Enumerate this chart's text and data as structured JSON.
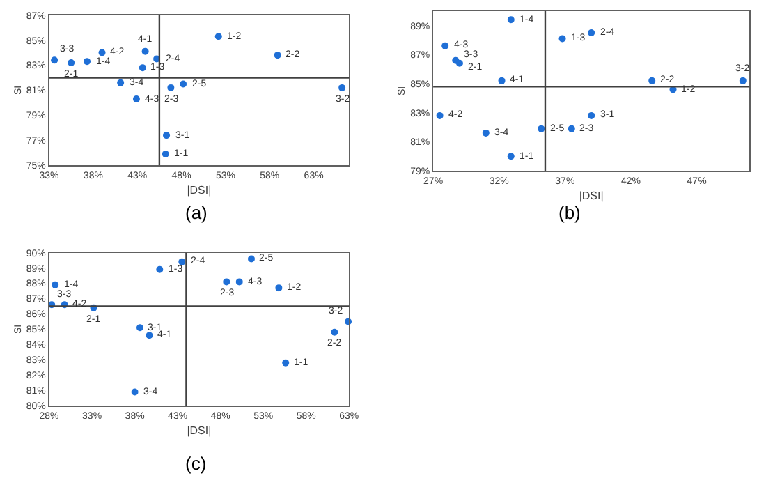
{
  "chart_data": [
    {
      "type": "scatter",
      "xlabel": "|DSI|",
      "ylabel": "SI",
      "marker": "circle",
      "grid": false,
      "xlim": [
        33,
        67
      ],
      "xticks": [
        {
          "value": 33,
          "label": "33%"
        },
        {
          "value": 38,
          "label": "38%"
        },
        {
          "value": 43,
          "label": "43%"
        },
        {
          "value": 48,
          "label": "48%"
        },
        {
          "value": 53,
          "label": "53%"
        },
        {
          "value": 58,
          "label": "58%"
        },
        {
          "value": 63,
          "label": "63%"
        }
      ],
      "ylim": [
        75,
        87
      ],
      "yticks": [
        {
          "value": 75,
          "label": "75%"
        },
        {
          "value": 77,
          "label": "77%"
        },
        {
          "value": 79,
          "label": "79%"
        },
        {
          "value": 81,
          "label": "81%"
        },
        {
          "value": 83,
          "label": "83%"
        },
        {
          "value": 85,
          "label": "85%"
        },
        {
          "value": 87,
          "label": "87%"
        }
      ],
      "ref_lines": [
        {
          "axis": "x",
          "value": 45.5,
          "color": "#404040"
        },
        {
          "axis": "y",
          "value": 82,
          "color": "#404040"
        }
      ],
      "series": [
        {
          "color": "#1f6fd6",
          "x": [
            33.6,
            35.5,
            37.3,
            39.0,
            43.9,
            45.2,
            43.6,
            41.1,
            42.9,
            46.8,
            48.2,
            52.2,
            58.9,
            66.2,
            46.3,
            46.2
          ],
          "values": [
            83.4,
            83.2,
            83.3,
            84.0,
            84.1,
            83.5,
            82.8,
            81.6,
            80.3,
            81.2,
            81.5,
            85.3,
            83.8,
            81.2,
            77.4,
            75.9
          ]
        }
      ],
      "annotations": [
        {
          "text": "3-3",
          "x": 33.6,
          "y": 83.4
        },
        {
          "text": "2-1",
          "x": 35.5,
          "y": 83.2
        },
        {
          "text": "1-4",
          "x": 37.3,
          "y": 83.3
        },
        {
          "text": "4-2",
          "x": 39.0,
          "y": 84.0
        },
        {
          "text": "4-1",
          "x": 43.9,
          "y": 84.1
        },
        {
          "text": "2-4",
          "x": 45.2,
          "y": 83.5
        },
        {
          "text": "1-3",
          "x": 43.6,
          "y": 82.8
        },
        {
          "text": "3-4",
          "x": 41.1,
          "y": 81.6
        },
        {
          "text": "4-3",
          "x": 42.9,
          "y": 80.3
        },
        {
          "text": "2-3",
          "x": 46.8,
          "y": 81.2
        },
        {
          "text": "2-5",
          "x": 48.2,
          "y": 81.5
        },
        {
          "text": "1-2",
          "x": 52.2,
          "y": 85.3
        },
        {
          "text": "2-2",
          "x": 58.9,
          "y": 83.8
        },
        {
          "text": "3-2",
          "x": 66.2,
          "y": 81.2
        },
        {
          "text": "3-1",
          "x": 46.3,
          "y": 77.4
        },
        {
          "text": "1-1",
          "x": 46.2,
          "y": 75.9
        },
        "(a)"
      ]
    },
    {
      "type": "scatter",
      "xlabel": "|DSI|",
      "ylabel": "SI",
      "marker": "circle",
      "grid": false,
      "xlim": [
        27,
        51
      ],
      "xticks": [
        {
          "value": 27,
          "label": "27%"
        },
        {
          "value": 32,
          "label": "32%"
        },
        {
          "value": 37,
          "label": "37%"
        },
        {
          "value": 42,
          "label": "42%"
        },
        {
          "value": 47,
          "label": "47%"
        }
      ],
      "ylim": [
        79,
        90
      ],
      "yticks": [
        {
          "value": 79,
          "label": "79%"
        },
        {
          "value": 81,
          "label": "81%"
        },
        {
          "value": 83,
          "label": "83%"
        },
        {
          "value": 85,
          "label": "85%"
        },
        {
          "value": 87,
          "label": "87%"
        },
        {
          "value": 89,
          "label": "89%"
        }
      ],
      "ref_lines": [
        {
          "axis": "x",
          "value": 35.5,
          "color": "#404040"
        },
        {
          "axis": "y",
          "value": 84.8,
          "color": "#404040"
        }
      ],
      "series": [
        {
          "color": "#1f6fd6",
          "x": [
            32.9,
            36.8,
            39.0,
            27.9,
            28.7,
            29.0,
            32.2,
            43.6,
            45.2,
            50.5,
            27.5,
            39.0,
            35.2,
            37.5,
            31.0,
            32.9
          ],
          "values": [
            89.4,
            88.1,
            88.5,
            87.6,
            86.6,
            86.4,
            85.2,
            85.2,
            84.6,
            85.2,
            82.8,
            82.8,
            81.9,
            81.9,
            81.6,
            80.0
          ]
        }
      ],
      "annotations": [
        {
          "text": "1-4",
          "x": 32.9,
          "y": 89.4
        },
        {
          "text": "1-3",
          "x": 36.8,
          "y": 88.1
        },
        {
          "text": "2-4",
          "x": 39.0,
          "y": 88.5
        },
        {
          "text": "4-3",
          "x": 27.9,
          "y": 87.6
        },
        {
          "text": "3-3",
          "x": 28.7,
          "y": 86.6
        },
        {
          "text": "2-1",
          "x": 29.0,
          "y": 86.4
        },
        {
          "text": "4-1",
          "x": 32.2,
          "y": 85.2
        },
        {
          "text": "2-2",
          "x": 43.6,
          "y": 85.2
        },
        {
          "text": "1-2",
          "x": 45.2,
          "y": 84.6
        },
        {
          "text": "3-2",
          "x": 50.5,
          "y": 85.2
        },
        {
          "text": "4-2",
          "x": 27.5,
          "y": 82.8
        },
        {
          "text": "3-1",
          "x": 39.0,
          "y": 82.8
        },
        {
          "text": "2-5",
          "x": 35.2,
          "y": 81.9
        },
        {
          "text": "2-3",
          "x": 37.5,
          "y": 81.9
        },
        {
          "text": "3-4",
          "x": 31.0,
          "y": 81.6
        },
        {
          "text": "1-1",
          "x": 32.9,
          "y": 80.0
        },
        "(b)"
      ]
    },
    {
      "type": "scatter",
      "xlabel": "|DSI|",
      "ylabel": "SI",
      "marker": "circle",
      "grid": false,
      "xlim": [
        28,
        63
      ],
      "xticks": [
        {
          "value": 28,
          "label": "28%"
        },
        {
          "value": 33,
          "label": "33%"
        },
        {
          "value": 38,
          "label": "38%"
        },
        {
          "value": 43,
          "label": "43%"
        },
        {
          "value": 48,
          "label": "48%"
        },
        {
          "value": 53,
          "label": "53%"
        },
        {
          "value": 58,
          "label": "58%"
        },
        {
          "value": 63,
          "label": "63%"
        }
      ],
      "ylim": [
        80,
        90
      ],
      "yticks": [
        {
          "value": 80,
          "label": "80%"
        },
        {
          "value": 81,
          "label": "81%"
        },
        {
          "value": 82,
          "label": "82%"
        },
        {
          "value": 83,
          "label": "83%"
        },
        {
          "value": 84,
          "label": "84%"
        },
        {
          "value": 85,
          "label": "85%"
        },
        {
          "value": 86,
          "label": "86%"
        },
        {
          "value": 87,
          "label": "87%"
        },
        {
          "value": 88,
          "label": "88%"
        },
        {
          "value": 89,
          "label": "89%"
        },
        {
          "value": 90,
          "label": "90%"
        }
      ],
      "ref_lines": [
        {
          "axis": "x",
          "value": 44.0,
          "color": "#404040"
        },
        {
          "axis": "y",
          "value": 86.5,
          "color": "#404040"
        }
      ],
      "series": [
        {
          "color": "#1f6fd6",
          "x": [
            43.5,
            40.9,
            51.6,
            48.7,
            50.2,
            54.8,
            28.7,
            28.3,
            29.8,
            33.2,
            38.6,
            39.7,
            62.9,
            61.3,
            55.6,
            38.0
          ],
          "values": [
            89.4,
            88.9,
            89.6,
            88.1,
            88.1,
            87.7,
            87.9,
            86.6,
            86.6,
            86.4,
            85.1,
            84.6,
            85.5,
            84.8,
            82.8,
            80.9
          ]
        }
      ],
      "annotations": [
        {
          "text": "2-4",
          "x": 43.5,
          "y": 89.4
        },
        {
          "text": "1-3",
          "x": 40.9,
          "y": 88.9
        },
        {
          "text": "2-5",
          "x": 51.6,
          "y": 89.6
        },
        {
          "text": "2-3",
          "x": 48.7,
          "y": 88.1
        },
        {
          "text": "4-3",
          "x": 50.2,
          "y": 88.1
        },
        {
          "text": "1-2",
          "x": 54.8,
          "y": 87.7
        },
        {
          "text": "1-4",
          "x": 28.7,
          "y": 87.9
        },
        {
          "text": "3-3",
          "x": 28.3,
          "y": 86.6
        },
        {
          "text": "4-2",
          "x": 29.8,
          "y": 86.6
        },
        {
          "text": "2-1",
          "x": 33.2,
          "y": 86.4
        },
        {
          "text": "3-1",
          "x": 38.6,
          "y": 85.1
        },
        {
          "text": "4-1",
          "x": 39.7,
          "y": 84.6
        },
        {
          "text": "3-2",
          "x": 62.9,
          "y": 85.5
        },
        {
          "text": "2-2",
          "x": 61.3,
          "y": 84.8
        },
        {
          "text": "1-1",
          "x": 55.6,
          "y": 82.8
        },
        {
          "text": "3-4",
          "x": 38.0,
          "y": 80.9
        },
        "(c)"
      ]
    }
  ]
}
